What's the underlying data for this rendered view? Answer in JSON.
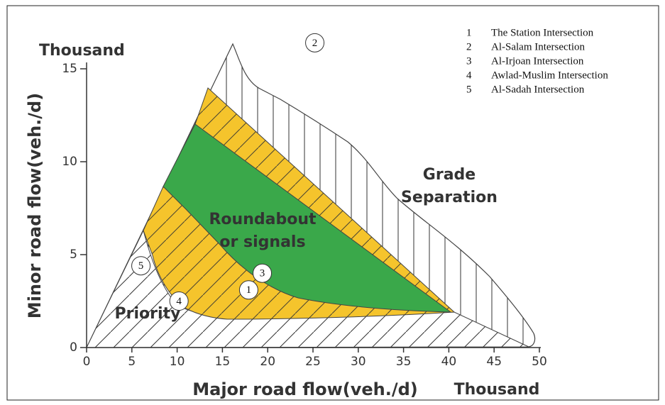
{
  "chart_data": {
    "type": "region",
    "x_label": "Major road flow(veh./d)",
    "y_label": "Minor road flow(veh./d)",
    "x_unit": "Thousand",
    "y_unit": "Thousand",
    "xlim": [
      0,
      50
    ],
    "ylim": [
      0,
      15
    ],
    "xticks": [
      0,
      5,
      10,
      15,
      20,
      25,
      30,
      35,
      40,
      45,
      50
    ],
    "yticks": [
      0,
      5,
      10,
      15
    ],
    "regions": [
      {
        "lines": [
          "Roundabout",
          "or signals"
        ],
        "color": "#3aa84a"
      },
      {
        "lines": [
          "Grade",
          "Separation"
        ],
        "color": "#ffffff"
      },
      {
        "lines": [
          "Priority"
        ],
        "color": "#ffffff"
      }
    ],
    "band_color": "#f5c42c",
    "points": [
      {
        "label": "1",
        "name": "The Station Intersection",
        "x": 17.9,
        "y": 3.1
      },
      {
        "label": "2",
        "name": "Al-Salam Intersection",
        "x": 25.2,
        "y": 16.4
      },
      {
        "label": "3",
        "name": "Al-Irjoan Intersection",
        "x": 19.4,
        "y": 4.0
      },
      {
        "label": "4",
        "name": "Awlad-Muslim Intersection",
        "x": 10.2,
        "y": 2.5
      },
      {
        "label": "5",
        "name": "Al-Sadah Intersection",
        "x": 6.0,
        "y": 4.4
      }
    ]
  }
}
